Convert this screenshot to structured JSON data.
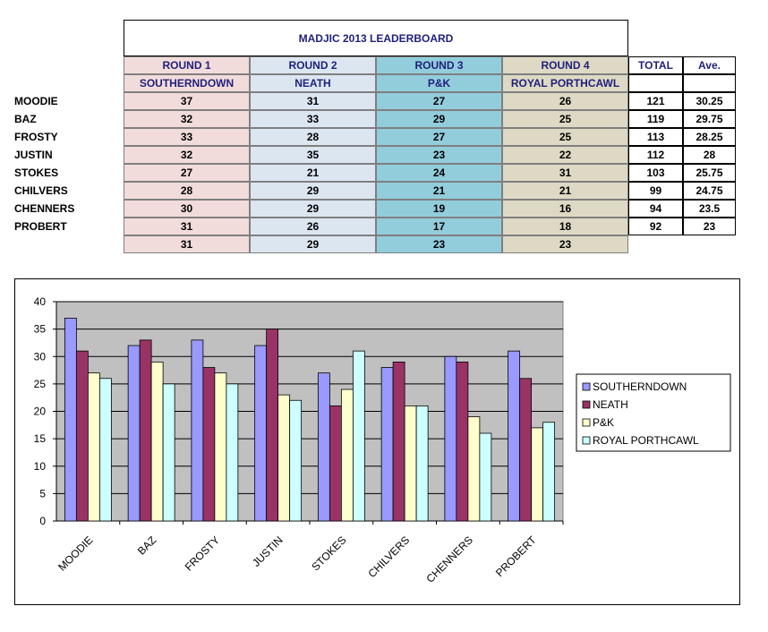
{
  "board": {
    "title": "MADJIC 2013 LEADERBOARD",
    "rounds": [
      {
        "label": "ROUND 1",
        "course": "SOUTHERNDOWN",
        "color": "#f2dcdb"
      },
      {
        "label": "ROUND 2",
        "course": "NEATH",
        "color": "#dce6f1"
      },
      {
        "label": "ROUND 3",
        "course": "P&K",
        "color": "#92cddc"
      },
      {
        "label": "ROUND 4",
        "course": "ROYAL PORTHCAWL",
        "color": "#ddd9c4"
      }
    ],
    "total_label": "TOTAL",
    "ave_label": "Ave.",
    "players": [
      {
        "name": "MOODIE",
        "scores": [
          "37",
          "31",
          "27",
          "26"
        ],
        "total": "121",
        "ave": "30.25"
      },
      {
        "name": "BAZ",
        "scores": [
          "32",
          "33",
          "29",
          "25"
        ],
        "total": "119",
        "ave": "29.75"
      },
      {
        "name": "FROSTY",
        "scores": [
          "33",
          "28",
          "27",
          "25"
        ],
        "total": "113",
        "ave": "28.25"
      },
      {
        "name": "JUSTIN",
        "scores": [
          "32",
          "35",
          "23",
          "22"
        ],
        "total": "112",
        "ave": "28"
      },
      {
        "name": "STOKES",
        "scores": [
          "27",
          "21",
          "24",
          "31"
        ],
        "total": "103",
        "ave": "25.75"
      },
      {
        "name": "CHILVERS",
        "scores": [
          "28",
          "29",
          "21",
          "21"
        ],
        "total": "99",
        "ave": "24.75"
      },
      {
        "name": "CHENNERS",
        "scores": [
          "30",
          "29",
          "19",
          "16"
        ],
        "total": "94",
        "ave": "23.5"
      },
      {
        "name": "PROBERT",
        "scores": [
          "31",
          "26",
          "17",
          "18"
        ],
        "total": "92",
        "ave": "23"
      }
    ],
    "round_averages": [
      "31",
      "29",
      "23",
      "23"
    ]
  },
  "chart_data": {
    "type": "bar",
    "categories": [
      "MOODIE",
      "BAZ",
      "FROSTY",
      "JUSTIN",
      "STOKES",
      "CHILVERS",
      "CHENNERS",
      "PROBERT"
    ],
    "series": [
      {
        "name": "SOUTHERNDOWN",
        "color": "#9999ff",
        "values": [
          37,
          32,
          33,
          32,
          27,
          28,
          30,
          31
        ]
      },
      {
        "name": "NEATH",
        "color": "#993366",
        "values": [
          31,
          33,
          28,
          35,
          21,
          29,
          29,
          26
        ]
      },
      {
        "name": "P&K",
        "color": "#ffffcc",
        "values": [
          27,
          29,
          27,
          23,
          24,
          21,
          19,
          17
        ]
      },
      {
        "name": "ROYAL PORTHCAWL",
        "color": "#ccffff",
        "values": [
          26,
          25,
          25,
          22,
          31,
          21,
          16,
          18
        ]
      }
    ],
    "title": "",
    "xlabel": "",
    "ylabel": "",
    "ylim": [
      0,
      40
    ],
    "yticks": [
      0,
      5,
      10,
      15,
      20,
      25,
      30,
      35,
      40
    ],
    "grid": true,
    "plot_background": "#c0c0c0",
    "legend_position": "right"
  }
}
